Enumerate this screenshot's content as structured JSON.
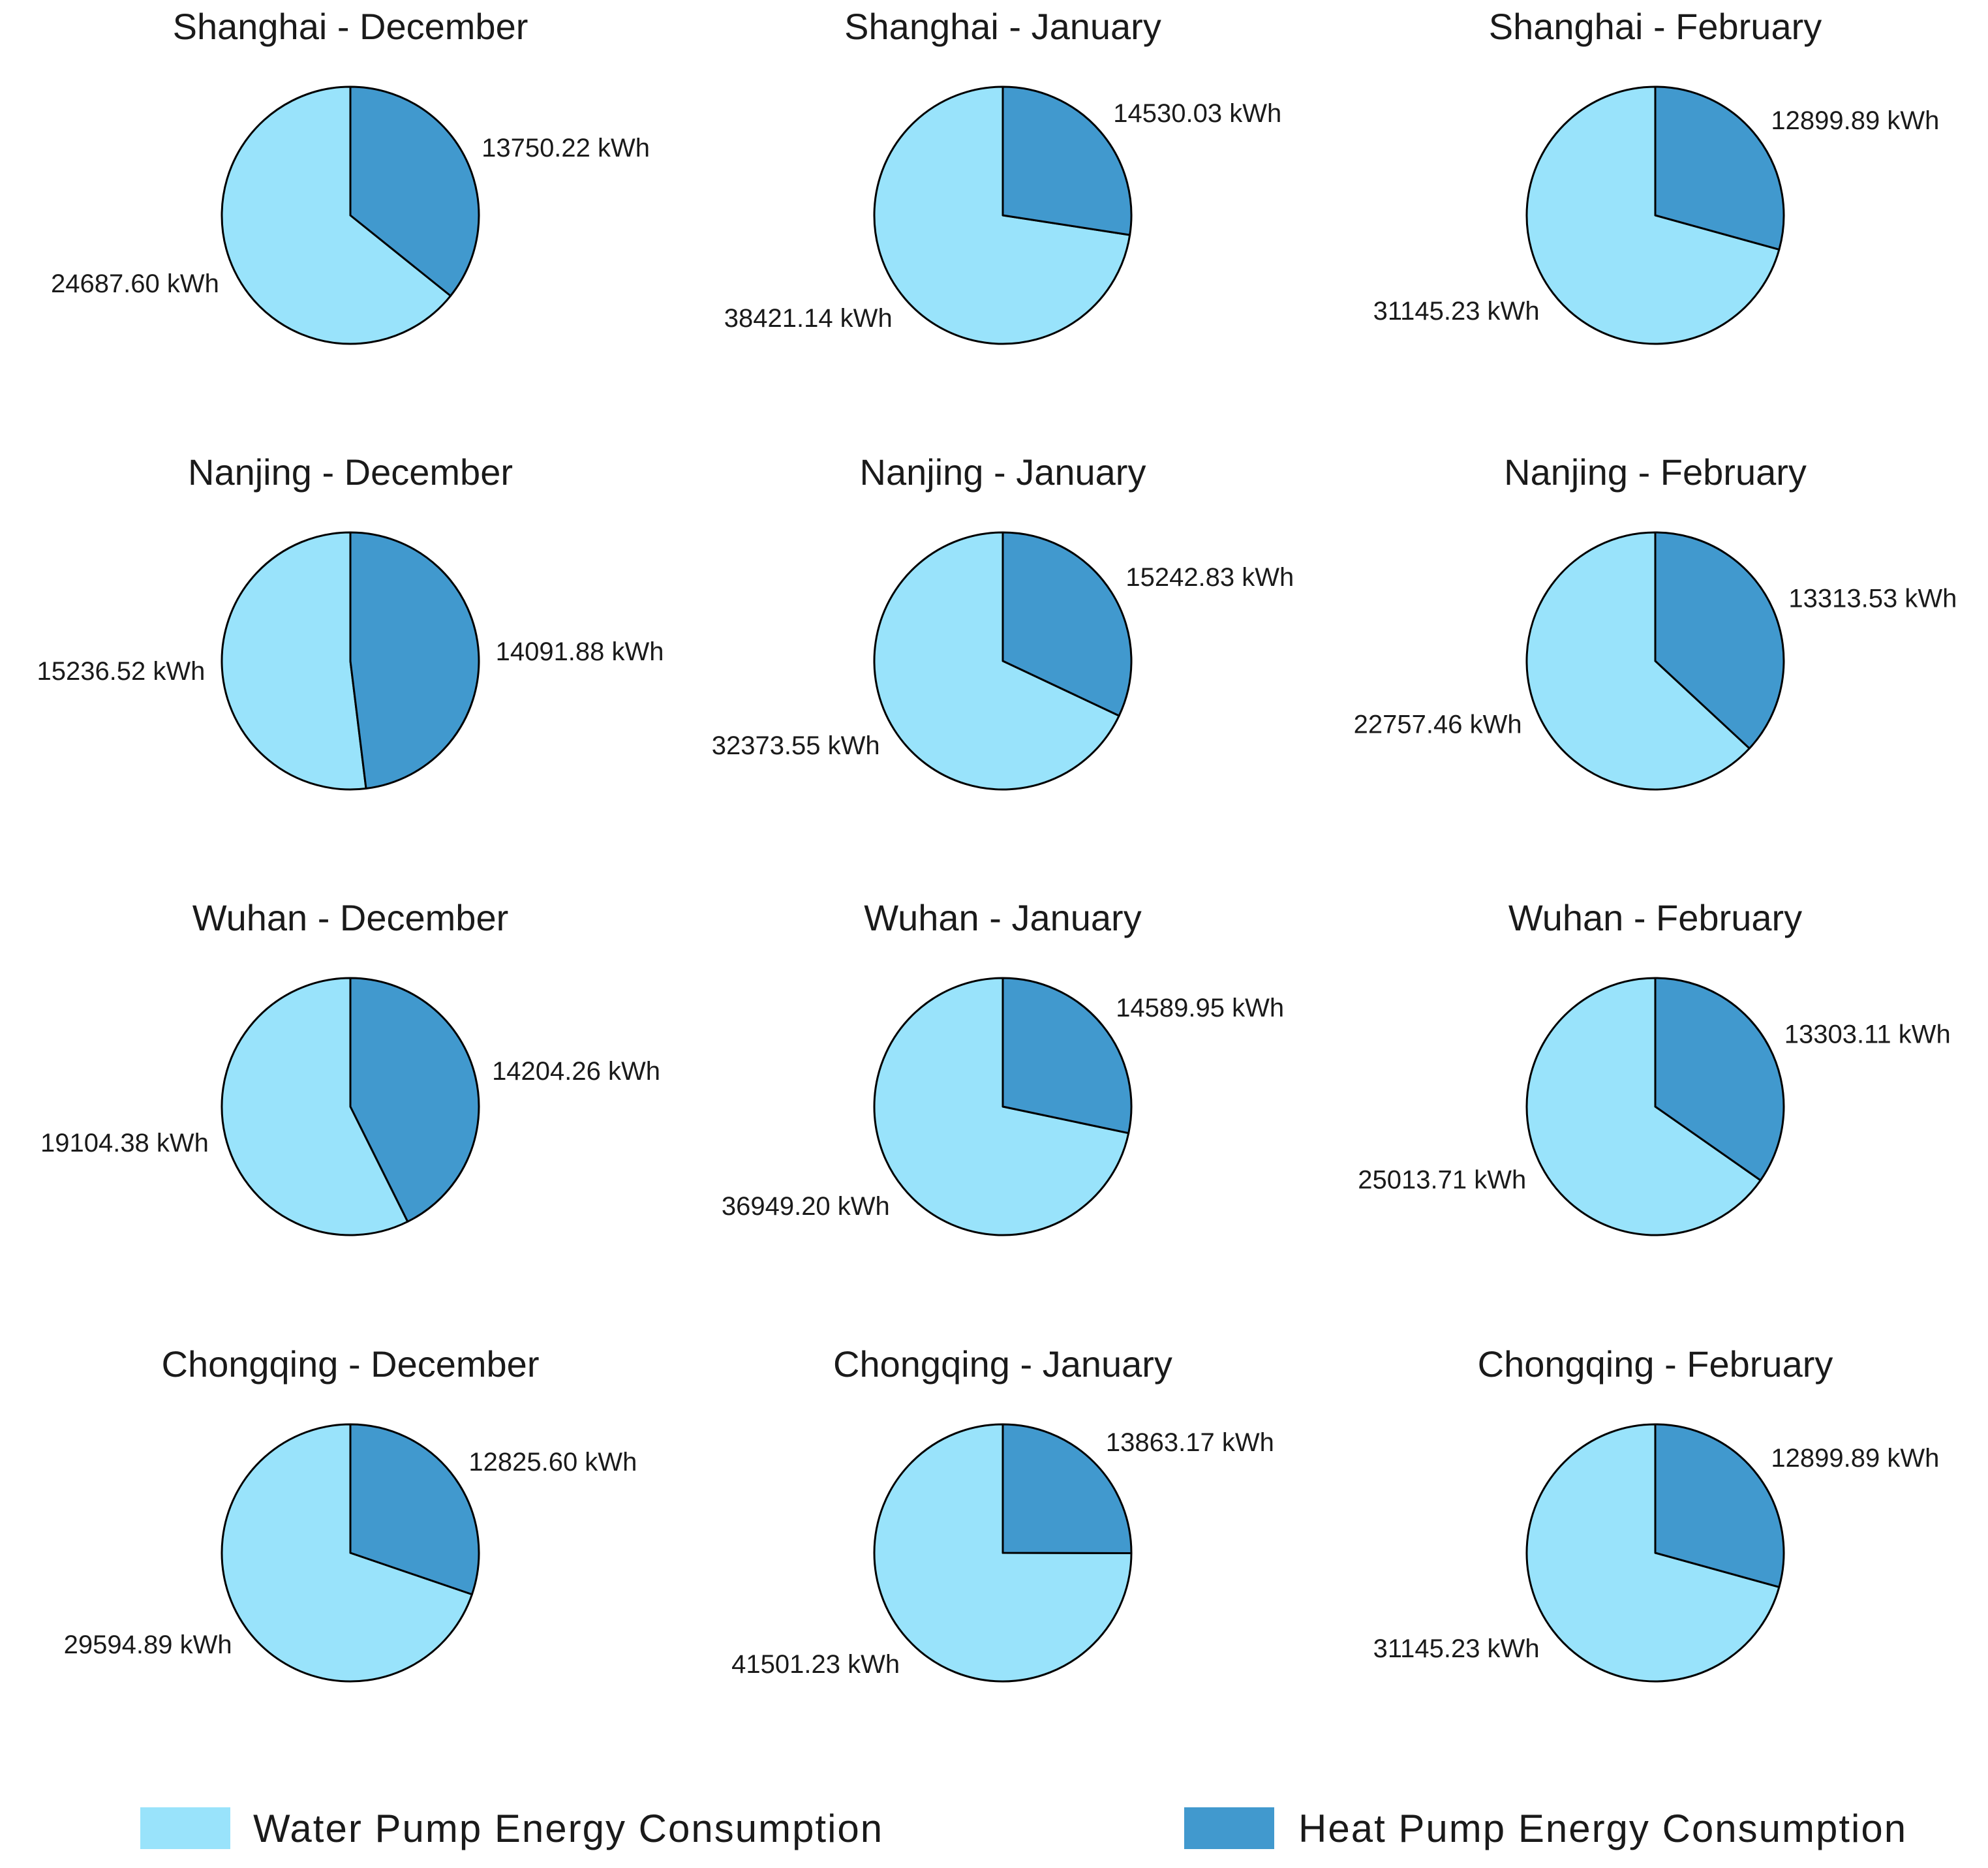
{
  "chart_data": {
    "type": "pie",
    "unit": "kWh",
    "legend": [
      {
        "name": "Water Pump Energy Consumption",
        "color": "#99e3fb"
      },
      {
        "name": "Heat Pump Energy Consumption",
        "color": "#4199ce"
      }
    ],
    "charts": [
      {
        "title": "Shanghai - December",
        "water": 24687.6,
        "heat": 13750.22,
        "water_label": "24687.60 kWh",
        "heat_label": "13750.22 kWh"
      },
      {
        "title": "Shanghai - January",
        "water": 38421.14,
        "heat": 14530.03,
        "water_label": "38421.14 kWh",
        "heat_label": "14530.03 kWh"
      },
      {
        "title": "Shanghai - February",
        "water": 31145.23,
        "heat": 12899.89,
        "water_label": "31145.23 kWh",
        "heat_label": "12899.89 kWh"
      },
      {
        "title": "Nanjing - December",
        "water": 15236.52,
        "heat": 14091.88,
        "water_label": "15236.52 kWh",
        "heat_label": "14091.88 kWh"
      },
      {
        "title": "Nanjing - January",
        "water": 32373.55,
        "heat": 15242.83,
        "water_label": "32373.55 kWh",
        "heat_label": "15242.83 kWh"
      },
      {
        "title": "Nanjing - February",
        "water": 22757.46,
        "heat": 13313.53,
        "water_label": "22757.46 kWh",
        "heat_label": "13313.53 kWh"
      },
      {
        "title": "Wuhan - December",
        "water": 19104.38,
        "heat": 14204.26,
        "water_label": "19104.38 kWh",
        "heat_label": "14204.26 kWh"
      },
      {
        "title": "Wuhan - January",
        "water": 36949.2,
        "heat": 14589.95,
        "water_label": "36949.20 kWh",
        "heat_label": "14589.95 kWh"
      },
      {
        "title": "Wuhan - February",
        "water": 25013.71,
        "heat": 13303.11,
        "water_label": "25013.71 kWh",
        "heat_label": "13303.11 kWh"
      },
      {
        "title": "Chongqing - December",
        "water": 29594.89,
        "heat": 12825.6,
        "water_label": "29594.89 kWh",
        "heat_label": "12825.60 kWh"
      },
      {
        "title": "Chongqing - January",
        "water": 41501.23,
        "heat": 13863.17,
        "water_label": "41501.23 kWh",
        "heat_label": "13863.17 kWh"
      },
      {
        "title": "Chongqing - February",
        "water": 31145.23,
        "heat": 12899.89,
        "water_label": "31145.23 kWh",
        "heat_label": "12899.89 kWh"
      }
    ]
  }
}
